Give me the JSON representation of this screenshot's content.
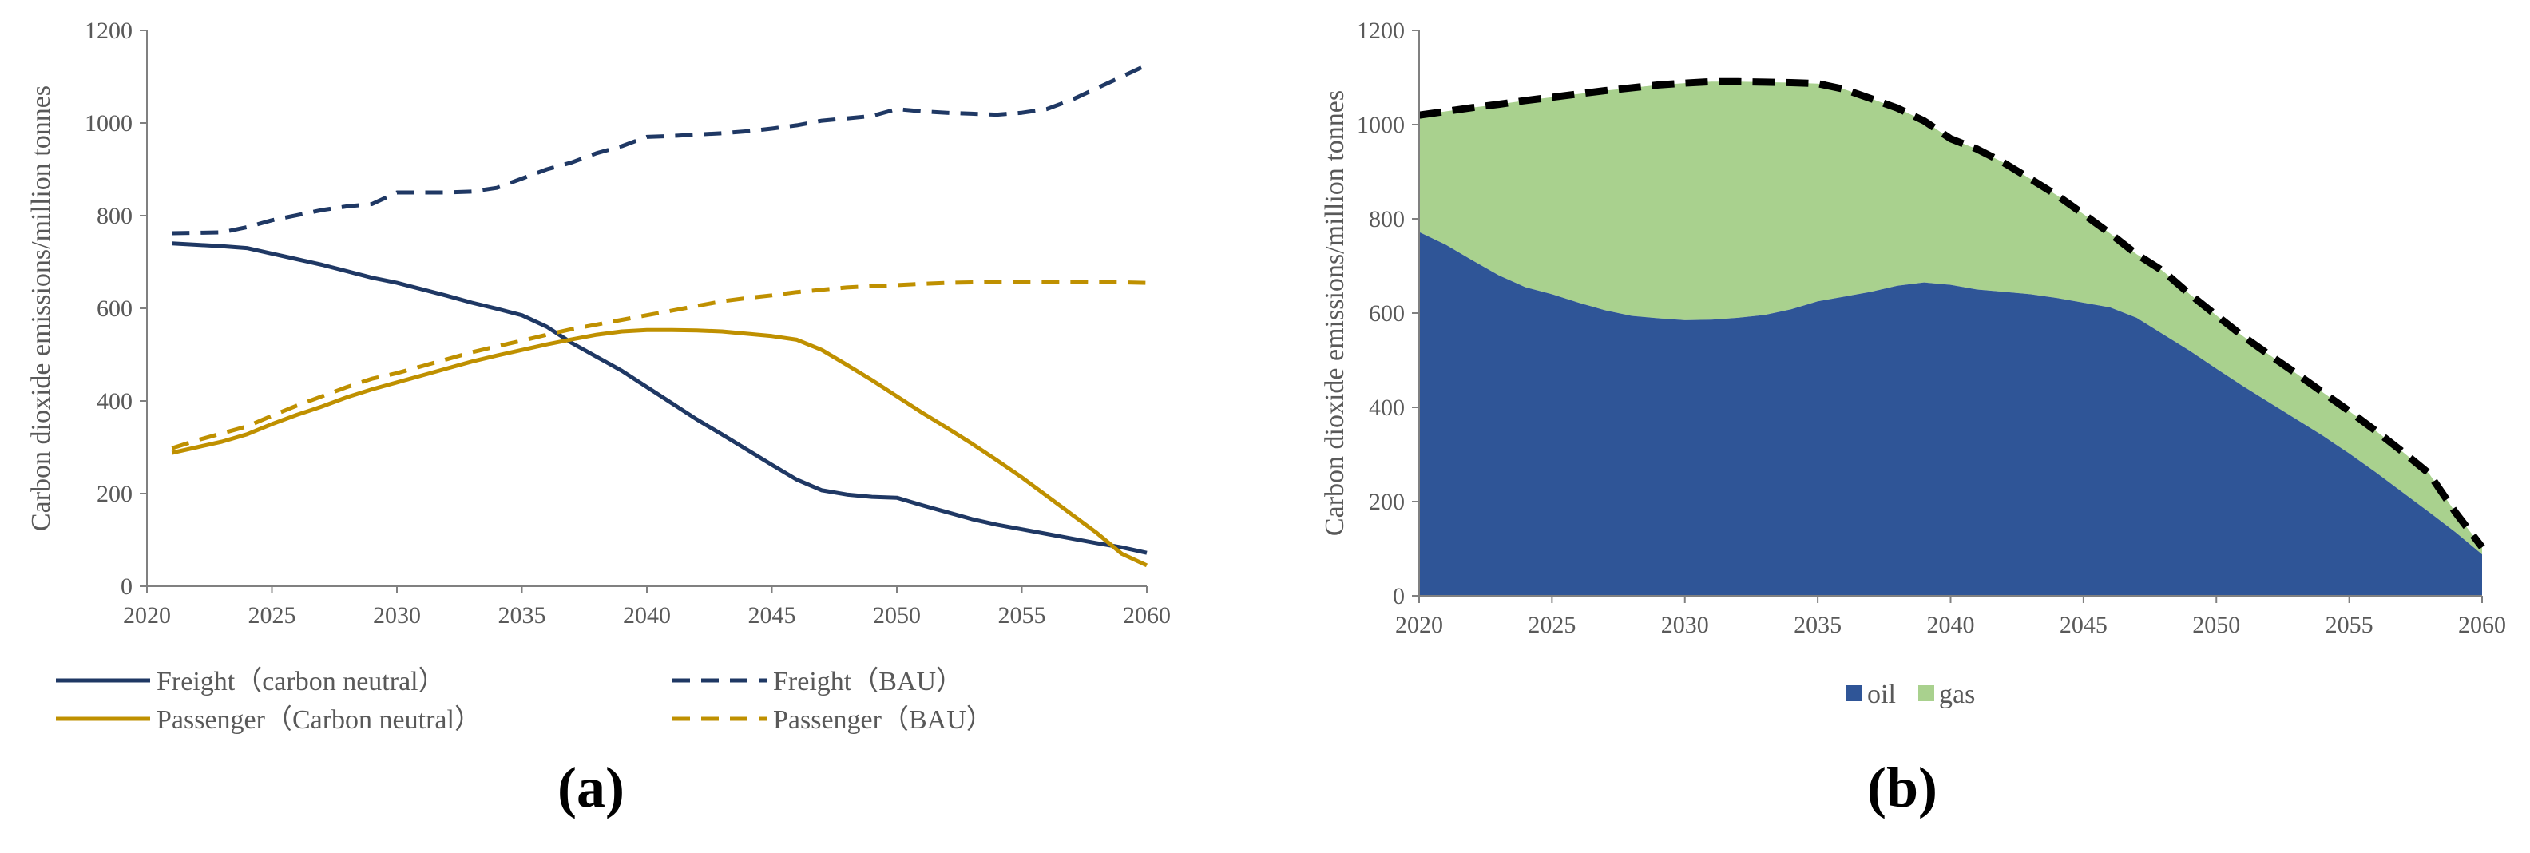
{
  "chart_data": [
    {
      "type": "line",
      "panel_label": "(a)",
      "ylabel": "Carbon dioxide emissions/million tonnes",
      "xlabel": "",
      "xlim": [
        2020,
        2060
      ],
      "ylim": [
        0,
        1200
      ],
      "x_ticks": [
        "2020",
        "2025",
        "2030",
        "2035",
        "2040",
        "2045",
        "2050",
        "2055",
        "2060"
      ],
      "y_ticks": [
        "0",
        "200",
        "400",
        "600",
        "800",
        "1000",
        "1200"
      ],
      "grid": false,
      "legend_position": "bottom",
      "series": [
        {
          "name": "Freight（carbon neutral）",
          "color": "#1f3864",
          "dash": "solid",
          "x": [
            2021,
            2022,
            2023,
            2024,
            2025,
            2026,
            2027,
            2028,
            2029,
            2030,
            2031,
            2032,
            2033,
            2034,
            2035,
            2036,
            2037,
            2038,
            2039,
            2040,
            2041,
            2042,
            2043,
            2044,
            2045,
            2046,
            2047,
            2048,
            2049,
            2050,
            2051,
            2052,
            2053,
            2054,
            2055,
            2056,
            2057,
            2058,
            2059,
            2060
          ],
          "values": [
            740,
            737,
            734,
            730,
            718,
            706,
            694,
            680,
            666,
            655,
            641,
            627,
            612,
            599,
            585,
            560,
            525,
            495,
            465,
            430,
            395,
            360,
            328,
            295,
            262,
            230,
            207,
            198,
            193,
            191,
            175,
            160,
            145,
            133,
            123,
            113,
            103,
            93,
            84,
            72
          ]
        },
        {
          "name": "Freight（BAU）",
          "color": "#1f3864",
          "dash": "dashed",
          "x": [
            2021,
            2022,
            2023,
            2024,
            2025,
            2026,
            2027,
            2028,
            2029,
            2030,
            2031,
            2032,
            2033,
            2034,
            2035,
            2036,
            2037,
            2038,
            2039,
            2040,
            2041,
            2042,
            2043,
            2044,
            2045,
            2046,
            2047,
            2048,
            2049,
            2050,
            2051,
            2052,
            2053,
            2054,
            2055,
            2056,
            2057,
            2058,
            2059,
            2060
          ],
          "values": [
            762,
            763,
            764,
            775,
            790,
            801,
            812,
            820,
            825,
            850,
            850,
            850,
            852,
            860,
            880,
            900,
            915,
            935,
            950,
            970,
            972,
            975,
            978,
            982,
            988,
            995,
            1005,
            1010,
            1015,
            1030,
            1025,
            1022,
            1020,
            1018,
            1022,
            1030,
            1050,
            1075,
            1100,
            1125
          ]
        },
        {
          "name": "Passenger（Carbon neutral）",
          "color": "#bf9000",
          "dash": "solid",
          "x": [
            2021,
            2022,
            2023,
            2024,
            2025,
            2026,
            2027,
            2028,
            2029,
            2030,
            2031,
            2032,
            2033,
            2034,
            2035,
            2036,
            2037,
            2038,
            2039,
            2040,
            2041,
            2042,
            2043,
            2044,
            2045,
            2046,
            2047,
            2048,
            2049,
            2050,
            2051,
            2052,
            2053,
            2054,
            2055,
            2056,
            2057,
            2058,
            2059,
            2060
          ],
          "values": [
            288,
            300,
            312,
            328,
            350,
            370,
            388,
            408,
            425,
            440,
            455,
            470,
            485,
            498,
            510,
            522,
            533,
            543,
            550,
            553,
            553,
            552,
            550,
            545,
            540,
            532,
            510,
            478,
            445,
            410,
            375,
            342,
            308,
            272,
            235,
            195,
            155,
            115,
            70,
            45
          ]
        },
        {
          "name": "Passenger（BAU）",
          "color": "#bf9000",
          "dash": "dashed",
          "x": [
            2021,
            2022,
            2023,
            2024,
            2025,
            2026,
            2027,
            2028,
            2029,
            2030,
            2031,
            2032,
            2033,
            2034,
            2035,
            2036,
            2037,
            2038,
            2039,
            2040,
            2041,
            2042,
            2043,
            2044,
            2045,
            2046,
            2047,
            2048,
            2049,
            2050,
            2051,
            2052,
            2053,
            2054,
            2055,
            2056,
            2057,
            2058,
            2059,
            2060
          ],
          "values": [
            298,
            315,
            330,
            345,
            368,
            390,
            410,
            430,
            448,
            460,
            475,
            490,
            505,
            518,
            530,
            543,
            555,
            565,
            575,
            585,
            595,
            605,
            615,
            622,
            628,
            635,
            640,
            645,
            648,
            650,
            653,
            655,
            656,
            657,
            657,
            657,
            657,
            656,
            656,
            655
          ]
        }
      ]
    },
    {
      "type": "area",
      "panel_label": "(b)",
      "ylabel": "Carbon dioxide emissions/million tonnes",
      "xlabel": "",
      "xlim": [
        2020,
        2060
      ],
      "ylim": [
        0,
        1200
      ],
      "x_ticks": [
        "2020",
        "2025",
        "2030",
        "2035",
        "2040",
        "2045",
        "2050",
        "2055",
        "2060"
      ],
      "y_ticks": [
        "0",
        "200",
        "400",
        "600",
        "800",
        "1000",
        "1200"
      ],
      "grid": false,
      "stacked": true,
      "legend_position": "bottom",
      "total_line": {
        "style": "dashed",
        "color": "#000000"
      },
      "series": [
        {
          "name": "oil",
          "color": "#2f5597",
          "x": [
            2020,
            2021,
            2022,
            2023,
            2024,
            2025,
            2026,
            2027,
            2028,
            2029,
            2030,
            2031,
            2032,
            2033,
            2034,
            2035,
            2036,
            2037,
            2038,
            2039,
            2040,
            2041,
            2042,
            2043,
            2044,
            2045,
            2046,
            2047,
            2048,
            2049,
            2050,
            2051,
            2052,
            2053,
            2054,
            2055,
            2056,
            2057,
            2058,
            2059,
            2060
          ],
          "values": [
            772,
            745,
            712,
            680,
            655,
            640,
            622,
            606,
            594,
            589,
            585,
            586,
            590,
            596,
            608,
            625,
            635,
            645,
            658,
            665,
            660,
            650,
            645,
            640,
            632,
            622,
            612,
            590,
            555,
            520,
            482,
            445,
            410,
            375,
            340,
            302,
            262,
            220,
            178,
            135,
            88
          ]
        },
        {
          "name": "gas",
          "color": "#a9d18e",
          "x": [
            2020,
            2021,
            2022,
            2023,
            2024,
            2025,
            2026,
            2027,
            2028,
            2029,
            2030,
            2031,
            2032,
            2033,
            2034,
            2035,
            2036,
            2037,
            2038,
            2039,
            2040,
            2041,
            2042,
            2043,
            2044,
            2045,
            2046,
            2047,
            2048,
            2049,
            2050,
            2051,
            2052,
            2053,
            2054,
            2055,
            2056,
            2057,
            2058,
            2059,
            2060
          ],
          "values": [
            248,
            283,
            324,
            363,
            396,
            418,
            443,
            466,
            484,
            495,
            503,
            505,
            501,
            494,
            481,
            462,
            440,
            410,
            377,
            343,
            310,
            298,
            274,
            245,
            218,
            188,
            157,
            135,
            134,
            120,
            113,
            106,
            101,
            97,
            92,
            90,
            88,
            86,
            82,
            42,
            15
          ]
        }
      ]
    }
  ]
}
